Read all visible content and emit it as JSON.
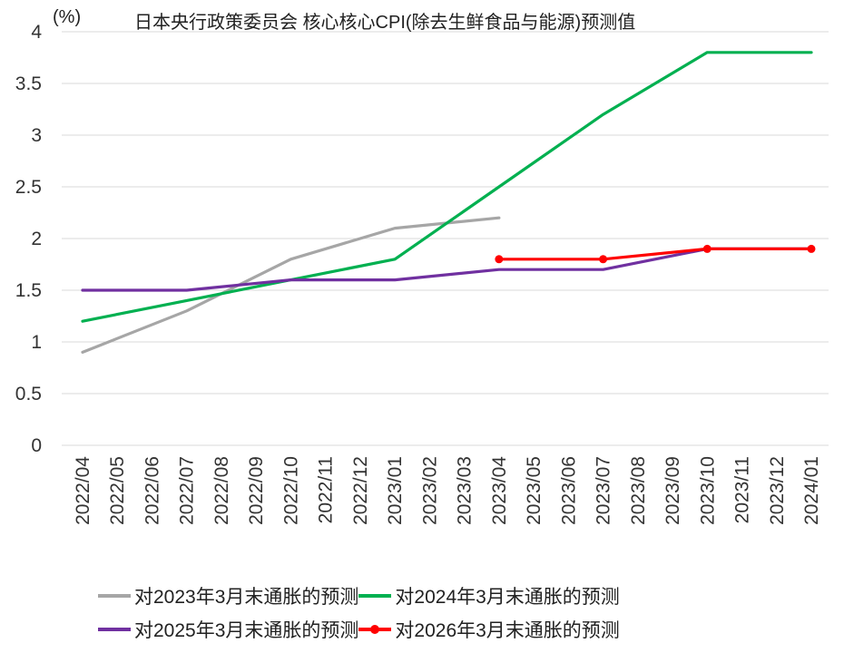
{
  "chart_data": {
    "type": "line",
    "title": "日本央行政策委员会  核心核心CPI(除去生鲜食品与能源)预测值",
    "unit_label": "(%)",
    "xlabel": "",
    "ylabel": "",
    "ylim": [
      0,
      4
    ],
    "yticks": [
      "0",
      "0.5",
      "1",
      "1.5",
      "2",
      "2.5",
      "3",
      "3.5",
      "4"
    ],
    "grid": true,
    "legend_position": "bottom",
    "categories": [
      "2022/04",
      "2022/05",
      "2022/06",
      "2022/07",
      "2022/08",
      "2022/09",
      "2022/10",
      "2022/11",
      "2022/12",
      "2023/01",
      "2023/02",
      "2023/03",
      "2023/04",
      "2023/05",
      "2023/06",
      "2023/07",
      "2023/08",
      "2023/09",
      "2023/10",
      "2023/11",
      "2023/12",
      "2024/01"
    ],
    "series": [
      {
        "name": "对2023年3月末通胀的预测",
        "color": "#a6a6a6",
        "markers": false,
        "points": [
          [
            "2022/04",
            0.9
          ],
          [
            "2022/07",
            1.3
          ],
          [
            "2022/10",
            1.8
          ],
          [
            "2023/01",
            2.1
          ],
          [
            "2023/04",
            2.2
          ]
        ]
      },
      {
        "name": "对2024年3月末通胀的预测",
        "color": "#00b050",
        "markers": false,
        "points": [
          [
            "2022/04",
            1.2
          ],
          [
            "2022/07",
            1.4
          ],
          [
            "2022/10",
            1.6
          ],
          [
            "2023/01",
            1.8
          ],
          [
            "2023/04",
            2.5
          ],
          [
            "2023/07",
            3.2
          ],
          [
            "2023/10",
            3.8
          ],
          [
            "2024/01",
            3.8
          ]
        ]
      },
      {
        "name": "对2025年3月末通胀的预测",
        "color": "#7030a0",
        "markers": false,
        "points": [
          [
            "2022/04",
            1.5
          ],
          [
            "2022/07",
            1.5
          ],
          [
            "2022/10",
            1.6
          ],
          [
            "2023/01",
            1.6
          ],
          [
            "2023/04",
            1.7
          ],
          [
            "2023/07",
            1.7
          ],
          [
            "2023/10",
            1.9
          ],
          [
            "2024/01",
            1.9
          ]
        ]
      },
      {
        "name": "对2026年3月末通胀的预测",
        "color": "#ff0000",
        "markers": true,
        "points": [
          [
            "2023/04",
            1.8
          ],
          [
            "2023/07",
            1.8
          ],
          [
            "2023/10",
            1.9
          ],
          [
            "2024/01",
            1.9
          ]
        ]
      }
    ]
  }
}
